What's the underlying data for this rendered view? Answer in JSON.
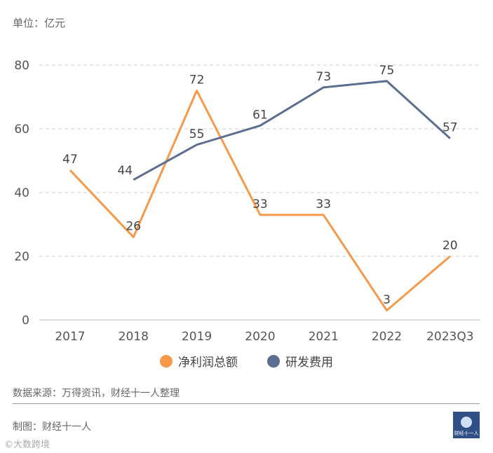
{
  "unit_label": "单位：亿元",
  "source_text": "数据来源：万得资讯，财经十一人整理",
  "credit_text": "制图：财经十一人",
  "watermark_text": "©大数跨境",
  "logo_text": "财经十一人",
  "colors": {
    "net_profit": "#F5994A",
    "rd": "#5C6E8F",
    "grid": "#cccccc",
    "axis_text": "#555555"
  },
  "chart_data": {
    "type": "line",
    "title": "",
    "xlabel": "",
    "ylabel": "",
    "ylim": [
      0,
      80
    ],
    "yticks": [
      0,
      20,
      40,
      60,
      80
    ],
    "grid": true,
    "legend_position": "bottom",
    "categories": [
      "2017",
      "2018",
      "2019",
      "2020",
      "2021",
      "2022",
      "2023Q3"
    ],
    "series": [
      {
        "name": "净利润总额",
        "color": "#F5994A",
        "values": [
          47,
          26,
          72,
          33,
          33,
          3,
          20
        ]
      },
      {
        "name": "研发费用",
        "color": "#5C6E8F",
        "values": [
          null,
          44,
          55,
          61,
          73,
          75,
          57
        ]
      }
    ]
  }
}
